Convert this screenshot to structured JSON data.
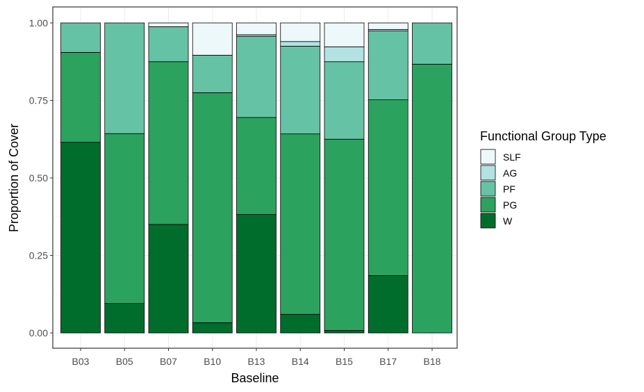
{
  "chart_data": {
    "type": "bar",
    "stacked": true,
    "xlabel": "Baseline",
    "ylabel": "Proportion of Cover",
    "ylim": [
      0,
      1
    ],
    "yticks": [
      0,
      0.25,
      0.5,
      0.75,
      1
    ],
    "ytick_labels": [
      "0.00",
      "0.25",
      "0.50",
      "0.75",
      "1.00"
    ],
    "grid": true,
    "legend_position": "right",
    "legend_title": "Functional Group Type",
    "categories": [
      "B03",
      "B05",
      "B07",
      "B10",
      "B13",
      "B14",
      "B15",
      "B17",
      "B18"
    ],
    "series": [
      {
        "name": "W",
        "color": "#006d2c",
        "values": [
          0.615,
          0.095,
          0.35,
          0.033,
          0.382,
          0.06,
          0.008,
          0.185,
          0.0
        ]
      },
      {
        "name": "PG",
        "color": "#2ca25f",
        "values": [
          0.29,
          0.548,
          0.525,
          0.742,
          0.313,
          0.582,
          0.617,
          0.567,
          0.867
        ]
      },
      {
        "name": "PF",
        "color": "#66c2a4",
        "values": [
          0.095,
          0.357,
          0.113,
          0.121,
          0.262,
          0.283,
          0.25,
          0.222,
          0.133
        ]
      },
      {
        "name": "AG",
        "color": "#b2e2e2",
        "values": [
          0.0,
          0.0,
          0.0,
          0.0,
          0.005,
          0.015,
          0.048,
          0.005,
          0.0
        ]
      },
      {
        "name": "SLF",
        "color": "#edf8fb",
        "values": [
          0.0,
          0.0,
          0.012,
          0.104,
          0.038,
          0.06,
          0.077,
          0.021,
          0.0
        ]
      }
    ],
    "legend_order": [
      "SLF",
      "AG",
      "PF",
      "PG",
      "W"
    ]
  }
}
